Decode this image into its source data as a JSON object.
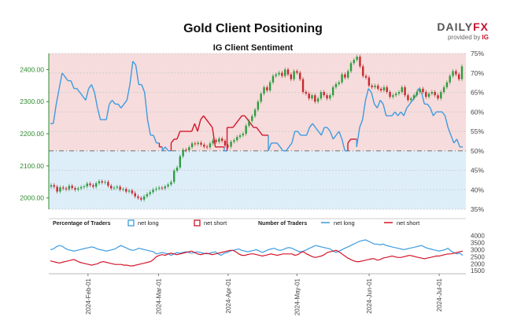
{
  "header": {
    "title": "Gold Client Positioning",
    "subtitle": "IG Client Sentiment",
    "brand_main": "DAILY",
    "brand_fx": "FX",
    "provided_by": "provided by",
    "provided_ig": "IG"
  },
  "colors": {
    "long": "#3d9be0",
    "short": "#d1162b",
    "price_axis": "#2f8a2f",
    "bull_candle": "#2e9c3f",
    "bear_candle": "#c8282e",
    "short_zone": "#f6dcdc",
    "long_zone": "#deeef9"
  },
  "chart_data": [
    {
      "type": "line",
      "name": "price",
      "title": "Gold Client Positioning",
      "subtitle": "IG Client Sentiment",
      "left_axis": {
        "ticks": [
          "2000.00",
          "2100.00",
          "2200.00",
          "2300.00",
          "2400.00"
        ],
        "ylim": [
          1965,
          2450
        ]
      },
      "right_axis": {
        "ticks": [
          "35%",
          "40%",
          "45%",
          "50%",
          "55%",
          "60%",
          "65%",
          "70%",
          "75%"
        ],
        "ylim": [
          35,
          75
        ]
      },
      "grid": true,
      "candles_close": [
        2040,
        2035,
        2020,
        2033,
        2030,
        2027,
        2038,
        2031,
        2026,
        2030,
        2034,
        2036,
        2045,
        2040,
        2035,
        2046,
        2052,
        2048,
        2050,
        2038,
        2030,
        2032,
        2035,
        2026,
        2028,
        2020,
        2023,
        2015,
        2005,
        2000,
        1995,
        2005,
        2012,
        2018,
        2026,
        2029,
        2032,
        2030,
        2036,
        2042,
        2050,
        2085,
        2095,
        2130,
        2150,
        2148,
        2158,
        2170,
        2168,
        2172,
        2166,
        2160,
        2158,
        2170,
        2180,
        2175,
        2185,
        2178,
        2163,
        2160,
        2175,
        2180,
        2190,
        2195,
        2200,
        2225,
        2240,
        2255,
        2275,
        2300,
        2325,
        2345,
        2335,
        2360,
        2380,
        2385,
        2390,
        2380,
        2400,
        2385,
        2370,
        2395,
        2390,
        2370,
        2330,
        2325,
        2310,
        2320,
        2300,
        2310,
        2330,
        2320,
        2310,
        2320,
        2345,
        2355,
        2360,
        2385,
        2375,
        2395,
        2420,
        2430,
        2440,
        2410,
        2380,
        2375,
        2350,
        2345,
        2350,
        2340,
        2335,
        2345,
        2330,
        2315,
        2320,
        2325,
        2330,
        2345,
        2320,
        2305,
        2310,
        2320,
        2330,
        2340,
        2330,
        2315,
        2325,
        2330,
        2320,
        2310,
        2330,
        2345,
        2360,
        2380,
        2395,
        2385,
        2370,
        2410
      ],
      "net_long_pct": [
        57,
        57,
        62,
        66,
        70,
        69,
        68,
        68,
        66,
        66,
        65,
        64,
        63,
        66,
        67,
        65,
        61,
        58,
        58,
        58,
        62,
        63,
        62,
        62,
        61,
        62,
        63,
        67,
        73,
        72,
        67,
        67,
        65,
        58,
        54,
        54,
        52,
        49,
        50,
        51,
        50,
        48,
        47,
        47,
        45,
        45,
        45,
        45,
        45,
        43,
        45,
        42,
        41,
        42,
        43,
        44,
        49,
        49,
        49,
        50,
        44,
        44,
        44,
        43,
        42,
        41,
        41,
        42,
        43,
        44,
        44,
        45,
        46,
        46,
        50,
        52,
        52,
        52,
        51,
        50,
        50,
        51,
        52,
        55,
        55,
        54,
        54,
        54,
        56,
        57,
        56,
        55,
        54,
        56,
        56,
        55,
        53,
        54,
        55,
        53,
        50,
        48,
        47,
        47,
        51,
        56,
        58,
        63,
        66,
        65,
        62,
        61,
        63,
        62,
        59,
        59,
        59,
        60,
        59,
        60,
        59,
        61,
        62,
        63,
        64,
        66,
        65,
        62,
        62,
        61,
        59,
        60,
        60,
        60,
        59,
        56,
        54,
        52,
        53,
        51,
        49
      ],
      "series": [
        {
          "name": "net long",
          "color": "#3d9be0"
        },
        {
          "name": "net short",
          "color": "#d1162b"
        }
      ]
    },
    {
      "type": "line",
      "name": "traders",
      "y_ticks": [
        "1500",
        "2000",
        "2500",
        "3000",
        "3500",
        "4000"
      ],
      "ylim": [
        1400,
        4200
      ],
      "x_ticks": [
        "2024-Feb-01",
        "2024-Mar-01",
        "2024-Apr-01",
        "2024-May-01",
        "2024-Jun-01",
        "2024-Jul-01"
      ],
      "legend": {
        "pct_label": "Percentage of Traders",
        "net_long": "net long",
        "net_short": "net short",
        "num_label": "Number of Traders"
      },
      "series": [
        {
          "name": "net long",
          "values": [
            3000,
            3050,
            3200,
            3300,
            3250,
            3100,
            3000,
            2950,
            2900,
            2950,
            3000,
            3050,
            3100,
            3150,
            3200,
            3150,
            3050,
            3000,
            2950,
            2900,
            2950,
            3000,
            3050,
            3200,
            3300,
            3200,
            3100,
            3000,
            2950,
            3000,
            3100,
            3050,
            3000,
            2950,
            2900,
            2850,
            2700,
            2750,
            2800,
            2750,
            2700,
            2600,
            2700,
            2800,
            2750,
            2800,
            2850,
            2800,
            2750,
            2800,
            2850,
            2800,
            2750,
            2700,
            2750,
            2800,
            2850,
            2700,
            2600,
            2750,
            2800,
            2900,
            2950,
            3000,
            3050,
            2950,
            2900,
            2850,
            2900,
            2950,
            3000,
            2900,
            2800,
            2900,
            3000,
            3050,
            3100,
            3000,
            2950,
            3000,
            3100,
            3150,
            3100,
            3000,
            2900,
            2850,
            2900,
            3000,
            3100,
            3200,
            3300,
            3250,
            3200,
            3150,
            3100,
            3050,
            2900,
            2800,
            2900,
            3000,
            3100,
            3200,
            3300,
            3400,
            3500,
            3600,
            3650,
            3700,
            3600,
            3500,
            3400,
            3400,
            3350,
            3400,
            3300,
            3250,
            3200,
            3150,
            3100,
            3050,
            3000,
            3050,
            3100,
            3150,
            3200,
            3250,
            3300,
            3200,
            3100,
            3050,
            3000,
            2950,
            2900,
            2950,
            3000,
            3100,
            2900,
            2800,
            2700,
            2750,
            2600
          ]
        },
        {
          "name": "net short",
          "values": [
            2200,
            2150,
            2100,
            2050,
            2100,
            2150,
            2200,
            2250,
            2300,
            2200,
            2100,
            2050,
            2000,
            1950,
            1900,
            1950,
            2000,
            2100,
            2150,
            2100,
            2050,
            2000,
            1950,
            1950,
            1950,
            1900,
            1900,
            1850,
            1850,
            1900,
            1950,
            2000,
            2050,
            2100,
            2150,
            2300,
            2500,
            2600,
            2650,
            2600,
            2700,
            2750,
            2700,
            2650,
            2700,
            2750,
            2800,
            2850,
            2900,
            2800,
            2700,
            2650,
            2700,
            2750,
            2700,
            2650,
            2700,
            2750,
            2800,
            2850,
            2900,
            2950,
            2950,
            2850,
            2700,
            2600,
            2600,
            2650,
            2700,
            2700,
            2650,
            2600,
            2550,
            2600,
            2650,
            2700,
            2650,
            2600,
            2650,
            2700,
            2700,
            2700,
            2700,
            2600,
            2650,
            2800,
            2850,
            2700,
            2600,
            2500,
            2450,
            2500,
            2550,
            2650,
            2800,
            2850,
            2900,
            2950,
            2850,
            2700,
            2550,
            2400,
            2300,
            2200,
            2150,
            2150,
            2200,
            2250,
            2300,
            2350,
            2350,
            2250,
            2300,
            2400,
            2450,
            2500,
            2550,
            2500,
            2450,
            2450,
            2500,
            2550,
            2600,
            2550,
            2500,
            2450,
            2400,
            2350,
            2400,
            2450,
            2500,
            2550,
            2550,
            2600,
            2650,
            2700,
            2700,
            2750,
            2800,
            2850,
            2900
          ]
        }
      ]
    }
  ]
}
